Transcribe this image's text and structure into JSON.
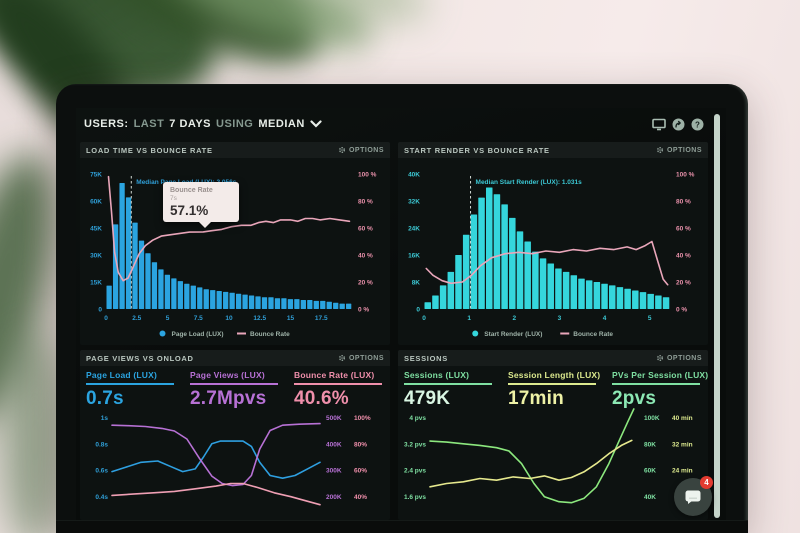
{
  "header": {
    "segments": [
      "USERS:",
      "LAST",
      "7 DAYS",
      "USING",
      "MEDIAN"
    ],
    "icons": [
      "display-icon",
      "share-icon",
      "help-icon"
    ]
  },
  "panels": {
    "load_time": {
      "title": "LOAD TIME VS BOUNCE RATE",
      "options_label": "OPTIONS",
      "tooltip": {
        "title": "Bounce Rate",
        "sub": "7s",
        "value": "57.1%"
      }
    },
    "start_render": {
      "title": "START RENDER VS BOUNCE RATE",
      "options_label": "OPTIONS"
    },
    "page_views": {
      "title": "PAGE VIEWS VS ONLOAD",
      "options_label": "OPTIONS",
      "metrics": [
        {
          "label": "Page Load (LUX)",
          "value": "0.7s"
        },
        {
          "label": "Page Views (LUX)",
          "value": "2.7Mpvs"
        },
        {
          "label": "Bounce Rate (LUX)",
          "value": "40.6%"
        }
      ]
    },
    "sessions": {
      "title": "SESSIONS",
      "options_label": "OPTIONS",
      "metrics": [
        {
          "label": "Sessions (LUX)",
          "value": "479K"
        },
        {
          "label": "Session Length (LUX)",
          "value": "17min"
        },
        {
          "label": "PVs Per Session (LUX)",
          "value": "2pvs"
        }
      ]
    }
  },
  "chat": {
    "badge": "4"
  },
  "colors": {
    "bar_blue": "#2ba4e0",
    "bar_cyan": "#35d6dc",
    "line_pink": "#e9a6ba",
    "purple": "#b771d5",
    "pink": "#ef8fab",
    "green": "#7fe0a2",
    "yellow": "#e6e98e",
    "mint": "#d9f6e3",
    "badge_red": "#e23b30"
  },
  "chart_data": [
    {
      "id": "load_time",
      "type": "bar+line",
      "title": "LOAD TIME VS BOUNCE RATE",
      "bar_color": "#2ba4e0",
      "axis_color": "#2f9ed6",
      "line_color": "#e9a6ba",
      "x_max": 20,
      "xlabel_unit": "s",
      "bars": [
        13,
        47,
        70,
        62,
        48,
        38,
        31,
        26,
        22,
        19,
        17,
        15.5,
        14,
        13,
        12,
        11,
        10.5,
        10,
        9.5,
        9,
        8.5,
        8,
        7.5,
        7,
        6.5,
        6.5,
        6,
        6,
        5.5,
        5.5,
        5,
        5,
        4.5,
        4.5,
        4,
        3.5,
        3,
        3
      ],
      "y_left": {
        "max": 75,
        "labels": [
          "75K",
          "60K",
          "45K",
          "30K",
          "15K",
          "0"
        ]
      },
      "y_right": {
        "max": 100,
        "labels": [
          "100 %",
          "80 %",
          "60 %",
          "40 %",
          "20 %",
          "0 %"
        ]
      },
      "x_ticks": [
        {
          "v": 0,
          "label": "0"
        },
        {
          "v": 2.5,
          "label": "2.5"
        },
        {
          "v": 5,
          "label": "5"
        },
        {
          "v": 7.5,
          "label": "7.5"
        },
        {
          "v": 10,
          "label": "10"
        },
        {
          "v": 12.5,
          "label": "12.5"
        },
        {
          "v": 15,
          "label": "15"
        },
        {
          "v": 17.5,
          "label": "17.5"
        }
      ],
      "median": {
        "x": 2.056,
        "label": "Median Page Load (LUX): 2.056s"
      },
      "line": [
        [
          0.2,
          98
        ],
        [
          0.45,
          72
        ],
        [
          0.7,
          42
        ],
        [
          1,
          27
        ],
        [
          1.4,
          21
        ],
        [
          1.8,
          23
        ],
        [
          2.2,
          31
        ],
        [
          2.7,
          41
        ],
        [
          3.2,
          47
        ],
        [
          3.8,
          51
        ],
        [
          4.5,
          54
        ],
        [
          5.2,
          55
        ],
        [
          6,
          56
        ],
        [
          6.8,
          57
        ],
        [
          7.9,
          57.1
        ],
        [
          8.6,
          58
        ],
        [
          9.4,
          59
        ],
        [
          10.2,
          61
        ],
        [
          11,
          62
        ],
        [
          11.8,
          62
        ],
        [
          12.4,
          64
        ],
        [
          13,
          65
        ],
        [
          13.6,
          64
        ],
        [
          14.2,
          66
        ],
        [
          15,
          66
        ],
        [
          15.6,
          65
        ],
        [
          16.2,
          67
        ],
        [
          16.8,
          67
        ],
        [
          17.4,
          66
        ],
        [
          18.2,
          67
        ],
        [
          19,
          66
        ],
        [
          19.8,
          65
        ]
      ],
      "legend": [
        {
          "label": "Page Load (LUX)",
          "color": "#2ba4e0",
          "shape": "dot"
        },
        {
          "label": "Bounce Rate",
          "color": "#e9a6ba",
          "shape": "line"
        }
      ]
    },
    {
      "id": "start_render",
      "type": "bar+line",
      "title": "START RENDER VS BOUNCE RATE",
      "bar_color": "#35d6dc",
      "axis_color": "#3cc8d4",
      "line_color": "#e9a6ba",
      "x_max": 5.45,
      "xlabel_unit": "s",
      "bars": [
        2,
        4,
        7,
        11,
        16,
        22,
        28,
        33,
        36,
        34,
        31,
        27,
        23,
        20,
        17,
        15,
        13.5,
        12,
        11,
        10,
        9,
        8.5,
        8,
        7.5,
        7,
        6.5,
        6,
        5.5,
        5,
        4.5,
        4,
        3.5
      ],
      "y_left": {
        "max": 40,
        "labels": [
          "40K",
          "32K",
          "24K",
          "16K",
          "8K",
          "0"
        ]
      },
      "y_right": {
        "max": 100,
        "labels": [
          "100 %",
          "80 %",
          "60 %",
          "40 %",
          "20 %",
          "0 %"
        ]
      },
      "x_ticks": [
        {
          "v": 0,
          "label": "0"
        },
        {
          "v": 1,
          "label": "1"
        },
        {
          "v": 2,
          "label": "2"
        },
        {
          "v": 3,
          "label": "3"
        },
        {
          "v": 4,
          "label": "4"
        },
        {
          "v": 5,
          "label": "5"
        }
      ],
      "median": {
        "x": 1.031,
        "label": "Median Start Render (LUX): 1.031s"
      },
      "line": [
        [
          0.05,
          30
        ],
        [
          0.2,
          25
        ],
        [
          0.4,
          21
        ],
        [
          0.6,
          19
        ],
        [
          0.85,
          20
        ],
        [
          1.05,
          25
        ],
        [
          1.25,
          32
        ],
        [
          1.5,
          38
        ],
        [
          1.8,
          41
        ],
        [
          2.1,
          42
        ],
        [
          2.4,
          41
        ],
        [
          2.7,
          43
        ],
        [
          3,
          42
        ],
        [
          3.3,
          44
        ],
        [
          3.6,
          43
        ],
        [
          3.9,
          45
        ],
        [
          4.2,
          44
        ],
        [
          4.5,
          46
        ],
        [
          4.7,
          44
        ],
        [
          4.9,
          47
        ],
        [
          5.05,
          50
        ],
        [
          5.2,
          33
        ],
        [
          5.3,
          22
        ],
        [
          5.4,
          18
        ]
      ],
      "legend": [
        {
          "label": "Start Render (LUX)",
          "color": "#35d6dc",
          "shape": "dot"
        },
        {
          "label": "Bounce Rate",
          "color": "#e9a6ba",
          "shape": "line"
        }
      ]
    },
    {
      "id": "page_views",
      "type": "lines",
      "title": "PAGE VIEWS VS ONLOAD",
      "left_color": "#2f9ed6",
      "right_colors": [
        "#b771d5",
        "#ef8fab"
      ],
      "y_ticks_left": [
        "1s",
        "0.8s",
        "0.6s",
        "0.4s"
      ],
      "y_ticks_right": [
        [
          "500K",
          "100%"
        ],
        [
          "400K",
          "80%"
        ],
        [
          "300K",
          "60%"
        ],
        [
          "200K",
          "40%"
        ]
      ],
      "series": [
        {
          "name": "Page Load (LUX)",
          "unit": "s",
          "color": "#2e9fe0",
          "domain": [
            0.33,
            1.07
          ],
          "points": [
            [
              0,
              0.59
            ],
            [
              6,
              0.62
            ],
            [
              14,
              0.66
            ],
            [
              22,
              0.67
            ],
            [
              28,
              0.63
            ],
            [
              34,
              0.59
            ],
            [
              40,
              0.61
            ],
            [
              44,
              0.7
            ],
            [
              48,
              0.8
            ],
            [
              52,
              0.82
            ],
            [
              58,
              0.82
            ],
            [
              63,
              0.82
            ],
            [
              67,
              0.78
            ],
            [
              71,
              0.66
            ],
            [
              76,
              0.56
            ],
            [
              82,
              0.54
            ],
            [
              88,
              0.56
            ],
            [
              94,
              0.61
            ],
            [
              100,
              0.66
            ]
          ]
        },
        {
          "name": "Page Views (LUX)",
          "unit": "K",
          "color": "#b771d5",
          "domain": [
            165,
            535
          ],
          "points": [
            [
              0,
              470
            ],
            [
              8,
              468
            ],
            [
              16,
              465
            ],
            [
              24,
              458
            ],
            [
              30,
              448
            ],
            [
              36,
              418
            ],
            [
              42,
              345
            ],
            [
              48,
              278
            ],
            [
              53,
              250
            ],
            [
              58,
              242
            ],
            [
              63,
              246
            ],
            [
              67,
              280
            ],
            [
              71,
              380
            ],
            [
              76,
              450
            ],
            [
              82,
              470
            ],
            [
              90,
              474
            ],
            [
              100,
              476
            ]
          ]
        },
        {
          "name": "Bounce Rate (LUX)",
          "unit": "%",
          "color": "#ef9fb4",
          "domain": [
            33,
            107
          ],
          "points": [
            [
              0,
              41
            ],
            [
              10,
              42
            ],
            [
              20,
              43
            ],
            [
              30,
              44
            ],
            [
              40,
              46
            ],
            [
              50,
              48
            ],
            [
              57,
              50
            ],
            [
              63,
              50
            ],
            [
              70,
              47
            ],
            [
              78,
              43
            ],
            [
              86,
              40
            ],
            [
              93,
              37
            ],
            [
              100,
              34
            ]
          ]
        }
      ]
    },
    {
      "id": "sessions",
      "type": "lines",
      "title": "SESSIONS",
      "left_color": "#7fe0a2",
      "right_colors": [
        "#7fe0a2",
        "#dce98e"
      ],
      "y_ticks_left": [
        "4 pvs",
        "3.2 pvs",
        "2.4 pvs",
        "1.6 pvs"
      ],
      "y_ticks_right": [
        [
          "100K",
          "40 min"
        ],
        [
          "80K",
          "32 min"
        ],
        [
          "60K",
          "24 min"
        ],
        [
          "40K",
          ""
        ]
      ],
      "series": [
        {
          "name": "PVs Per Session (LUX)",
          "unit": "pvs",
          "color": "#8ce87e",
          "domain": [
            1.32,
            4.28
          ],
          "points": [
            [
              0,
              3.28
            ],
            [
              8,
              3.25
            ],
            [
              16,
              3.2
            ],
            [
              24,
              3.15
            ],
            [
              32,
              3.08
            ],
            [
              38,
              2.98
            ],
            [
              44,
              2.6
            ],
            [
              50,
              2.0
            ],
            [
              55,
              1.6
            ],
            [
              62,
              1.45
            ],
            [
              68,
              1.42
            ],
            [
              74,
              1.55
            ],
            [
              80,
              1.9
            ],
            [
              86,
              2.6
            ],
            [
              91,
              3.3
            ],
            [
              95,
              3.85
            ],
            [
              98,
              4.25
            ]
          ]
        },
        {
          "name": "Session Length (LUX)",
          "unit": "min",
          "color": "#e6e98e",
          "domain": [
            13.2,
            42.8
          ],
          "points": [
            [
              0,
              19
            ],
            [
              8,
              20
            ],
            [
              16,
              20.5
            ],
            [
              24,
              21.5
            ],
            [
              32,
              21
            ],
            [
              40,
              22
            ],
            [
              48,
              21.5
            ],
            [
              55,
              22.3
            ],
            [
              62,
              21
            ],
            [
              68,
              21.8
            ],
            [
              74,
              23.5
            ],
            [
              80,
              26
            ],
            [
              86,
              29
            ],
            [
              92,
              31.5
            ],
            [
              97,
              33
            ]
          ]
        }
      ]
    }
  ]
}
